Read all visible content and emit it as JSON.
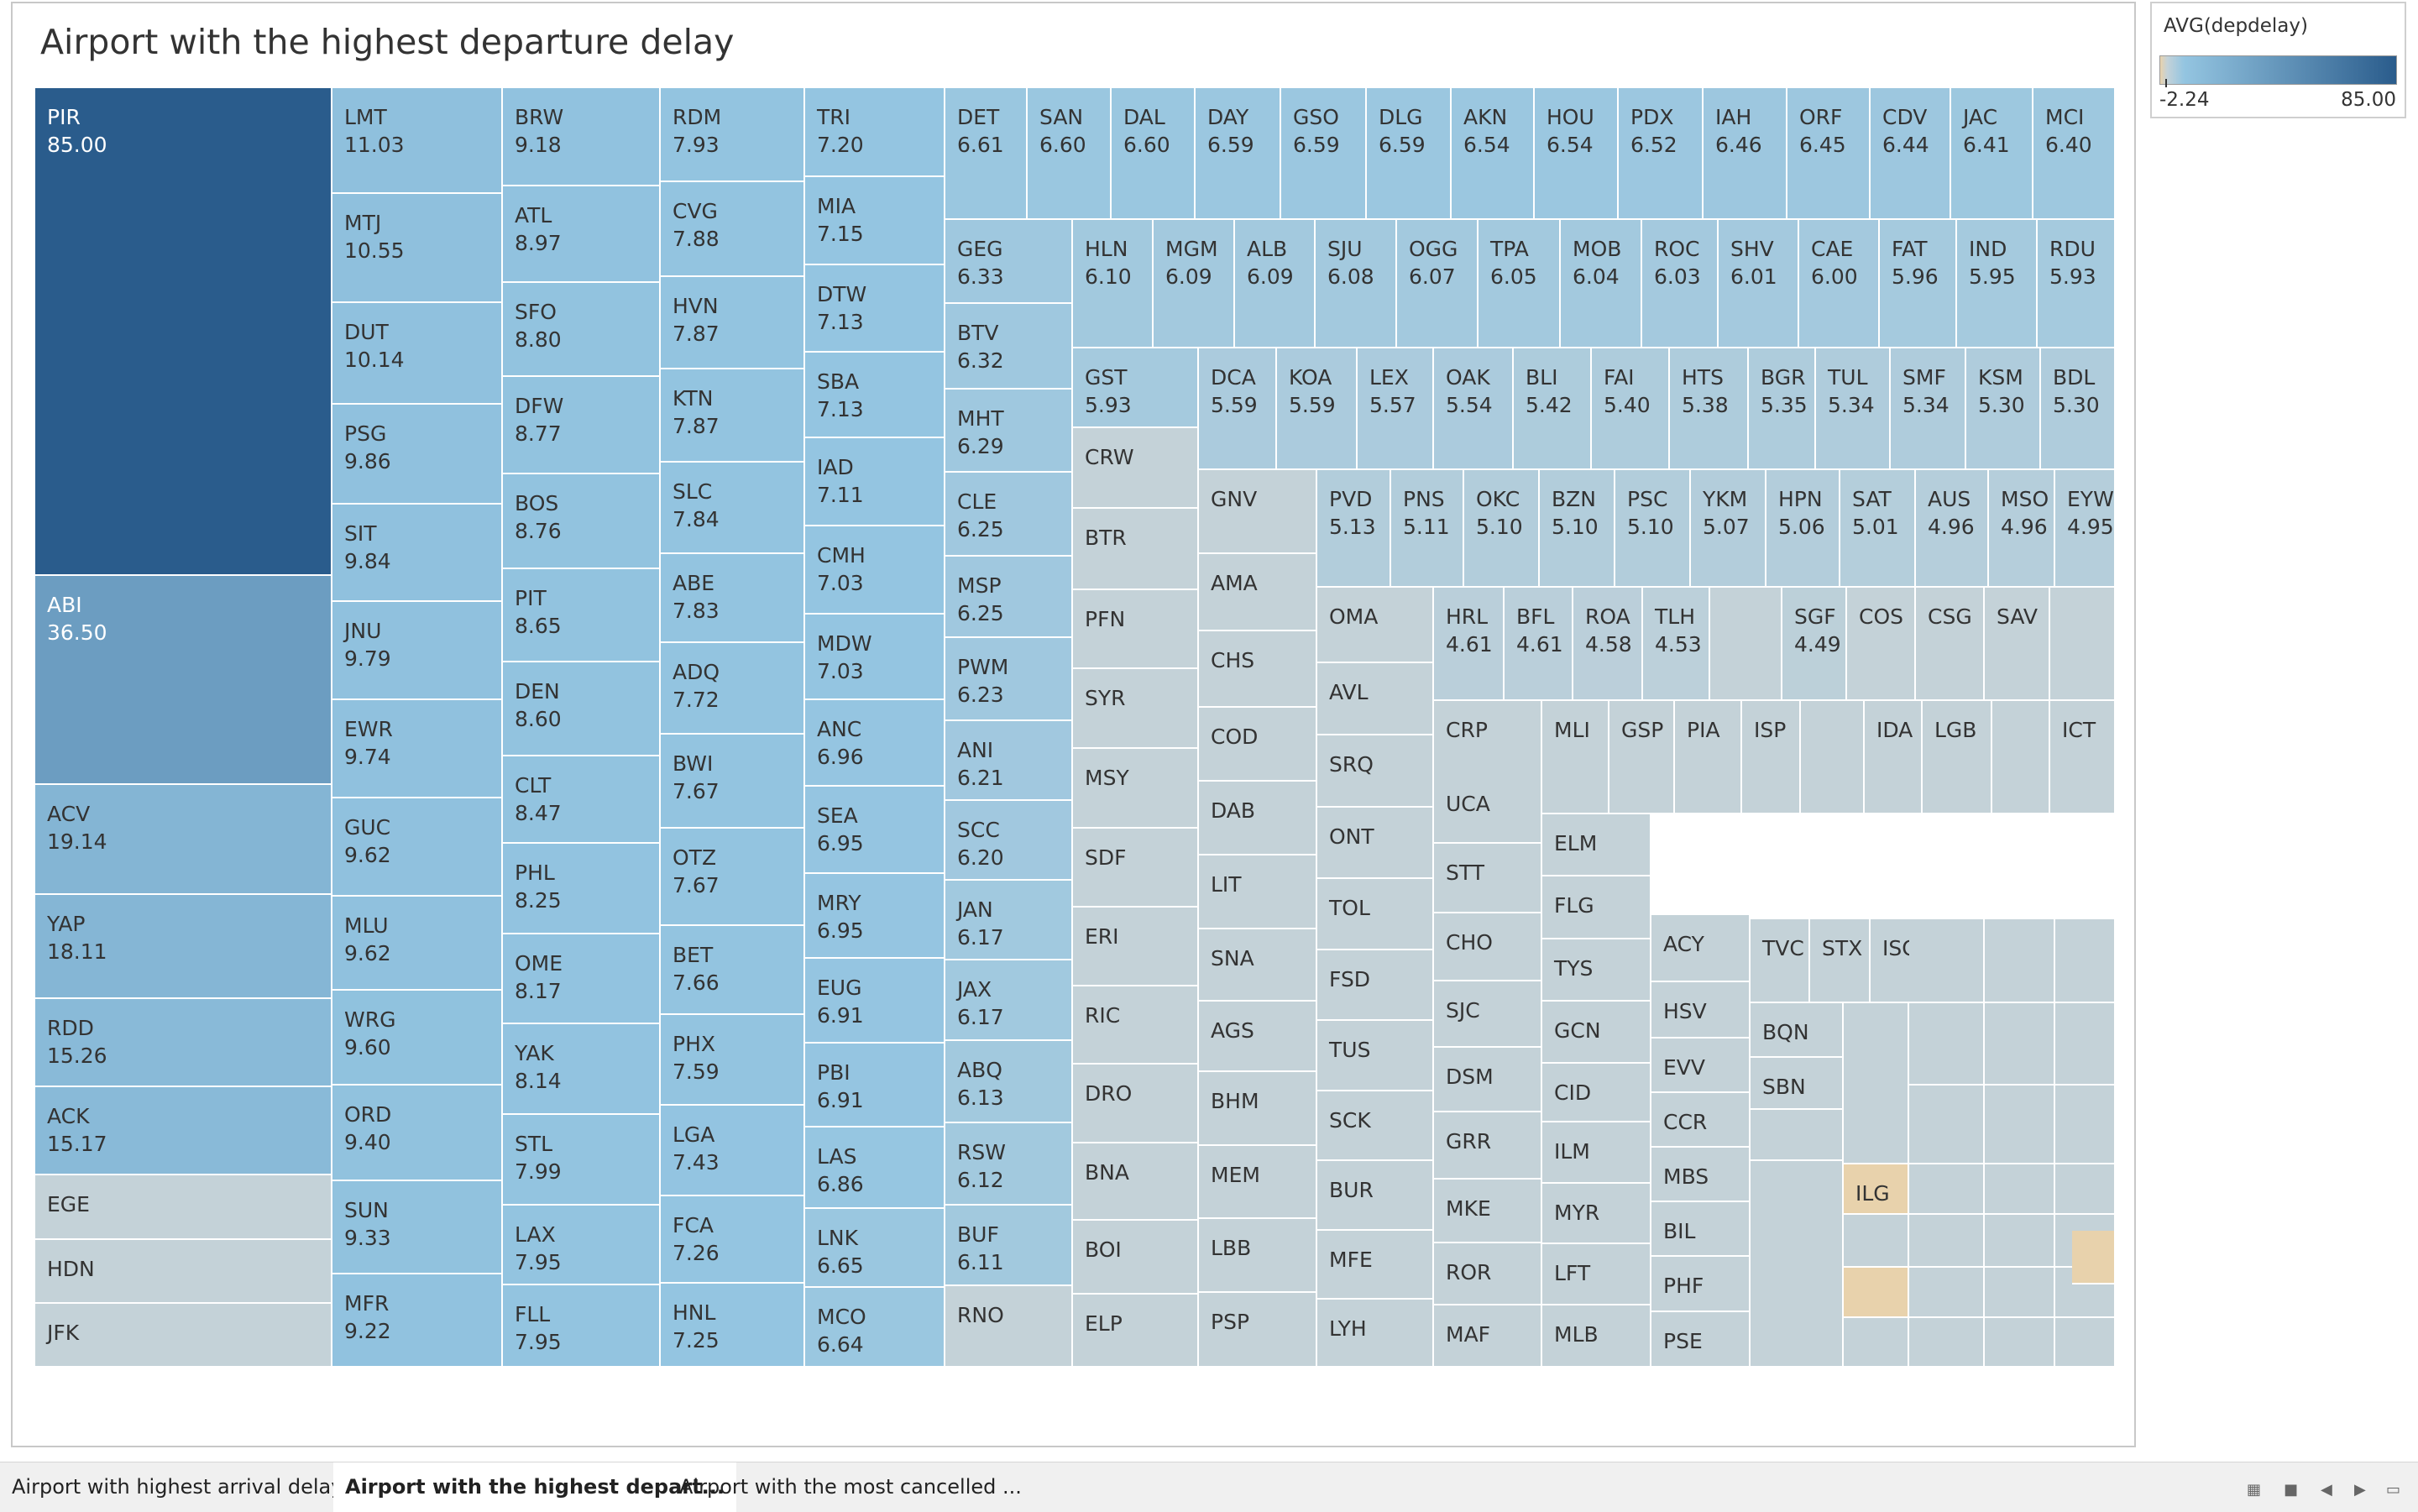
{
  "sheet_tabs": [
    {
      "label": "Airport with highest arrival delay",
      "active": false
    },
    {
      "label": "Airport with the highest depart...",
      "active": true
    },
    {
      "label": "Airport with the most cancelled ...",
      "active": false
    }
  ],
  "legend": {
    "title": "AVG(depdelay)",
    "min_label": "-2.24",
    "max_label": "85.00"
  },
  "colors": {
    "max": "#2a5c8c",
    "mid": "#94c5e1",
    "low": "#c4d2d8",
    "neg": "#e8d2ac"
  },
  "bottom_controls": [
    "grid-view-icon",
    "single-view-icon",
    "prev-sheet-icon",
    "next-sheet-icon",
    "presentation-icon"
  ],
  "chart_data": {
    "type": "treemap",
    "title": "Airport with the highest departure delay",
    "measure": "AVG(depdelay)",
    "color_range": [
      -2.24,
      85.0
    ],
    "columns": [
      [
        "PIR 85.00",
        "ABI 36.50",
        "ACV 19.14",
        "YAP 18.11",
        "RDD 15.26",
        "ACK 15.17",
        "EGE",
        "HDN",
        "JFK"
      ],
      [
        "LMT 11.03",
        "MTJ 10.55",
        "DUT 10.14",
        "PSG 9.86",
        "SIT 9.84",
        "JNU 9.79",
        "EWR 9.74",
        "GUC 9.62",
        "MLU 9.62",
        "WRG 9.60",
        "ORD 9.40",
        "SUN 9.33",
        "MFR 9.22"
      ],
      [
        "BRW 9.18",
        "ATL 8.97",
        "SFO 8.80",
        "DFW 8.77",
        "BOS 8.76",
        "PIT 8.65",
        "DEN 8.60",
        "CLT 8.47",
        "PHL 8.25",
        "OME 8.17",
        "YAK 8.14",
        "STL 7.99",
        "LAX 7.95",
        "FLL 7.95"
      ],
      [
        "RDM 7.93",
        "CVG 7.88",
        "HVN 7.87",
        "KTN 7.87",
        "SLC 7.84",
        "ABE 7.83",
        "ADQ 7.72",
        "BWI 7.67",
        "OTZ 7.67",
        "BET 7.66",
        "PHX 7.59",
        "LGA 7.43",
        "FCA 7.26",
        "HNL 7.25"
      ],
      [
        "TRI 7.20",
        "MIA 7.15",
        "DTW 7.13",
        "SBA 7.13",
        "IAD 7.11",
        "CMH 7.03",
        "MDW 7.03",
        "ANC 6.96",
        "SEA 6.95",
        "MRY 6.95",
        "EUG 6.91",
        "PBI 6.91",
        "LAS 6.86",
        "LNK 6.65",
        "MCO 6.64"
      ]
    ],
    "rows": [
      [
        "DET 6.61",
        "SAN 6.60",
        "DAL 6.60",
        "DAY 6.59",
        "GSO 6.59",
        "DLG 6.59",
        "AKN 6.54",
        "HOU 6.54",
        "PDX 6.52",
        "IAH 6.46",
        "ORF 6.45",
        "CDV 6.44",
        "JAC 6.41",
        "MCI 6.40"
      ],
      [
        "HLN 6.10",
        "MGM 6.09",
        "ALB 6.09",
        "SJU 6.08",
        "OGG 6.07",
        "TPA 6.05",
        "MOB 6.04",
        "ROC 6.03",
        "SHV 6.01",
        "CAE 6.00",
        "FAT 5.96",
        "IND 5.95",
        "RDU 5.93"
      ],
      [
        "DCA 5.59",
        "KOA 5.59",
        "LEX 5.57",
        "OAK 5.54",
        "BLI 5.42",
        "FAI 5.40",
        "HTS 5.38",
        "BGR 5.35",
        "TUL 5.34",
        "SMF 5.34",
        "KSM 5.30",
        "BDL 5.30"
      ],
      [
        "PVD 5.13",
        "PNS 5.11",
        "OKC 5.10",
        "BZN 5.10",
        "PSC 5.10",
        "YKM 5.07",
        "HPN 5.06",
        "SAT 5.01",
        "AUS 4.96",
        "MSO 4.96",
        "EYW 4.95"
      ],
      [
        "HRL 4.61",
        "BFL 4.61",
        "ROA 4.58",
        "TLH 4.53",
        "",
        "SGF 4.49",
        "COS",
        "CSG",
        "SAV",
        ""
      ],
      [
        "CRP",
        "MLI",
        "GSP",
        "PIA",
        "ISP",
        "",
        "IDA",
        "LGB",
        "",
        "ICT"
      ]
    ],
    "left_columns": [
      [
        "GEG 6.33",
        "BTV 6.32",
        "MHT 6.29",
        "CLE 6.25",
        "MSP 6.25",
        "PWM 6.23",
        "ANI 6.21",
        "SCC 6.20",
        "JAN 6.17",
        "JAX 6.17",
        "ABQ 6.13",
        "RSW 6.12",
        "BUF 6.11",
        "RNO"
      ],
      [
        "GST 5.93",
        "CRW",
        "BTR",
        "PFN",
        "SYR",
        "MSY",
        "SDF",
        "ERI",
        "RIC",
        "DRO",
        "BNA",
        "BOI",
        "ELP"
      ],
      [
        "GNV",
        "AMA",
        "CHS",
        "COD",
        "DAB",
        "LIT",
        "SNA",
        "AGS",
        "BHM",
        "MEM",
        "LBB",
        "PSP"
      ],
      [
        "OMA",
        "AVL",
        "SRQ",
        "ONT",
        "TOL",
        "FSD",
        "TUS",
        "SCK",
        "BUR",
        "MFE",
        "LYH"
      ],
      [
        "UCA",
        "STT",
        "CHO",
        "SJC",
        "DSM",
        "GRR",
        "MKE",
        "ROR",
        "MAF"
      ],
      [
        "ELM",
        "FLG",
        "TYS",
        "GCN",
        "CID",
        "ILM",
        "MYR",
        "LFT",
        "MLB"
      ],
      [
        "ACY",
        "HSV",
        "EVV",
        "CCR",
        "MBS",
        "BIL",
        "PHF",
        "PSE"
      ],
      [
        "BQN",
        "SBN",
        "",
        ""
      ],
      [
        "",
        "ILG",
        "",
        ""
      ],
      [
        "TVC",
        "STX",
        "ISO"
      ]
    ]
  }
}
